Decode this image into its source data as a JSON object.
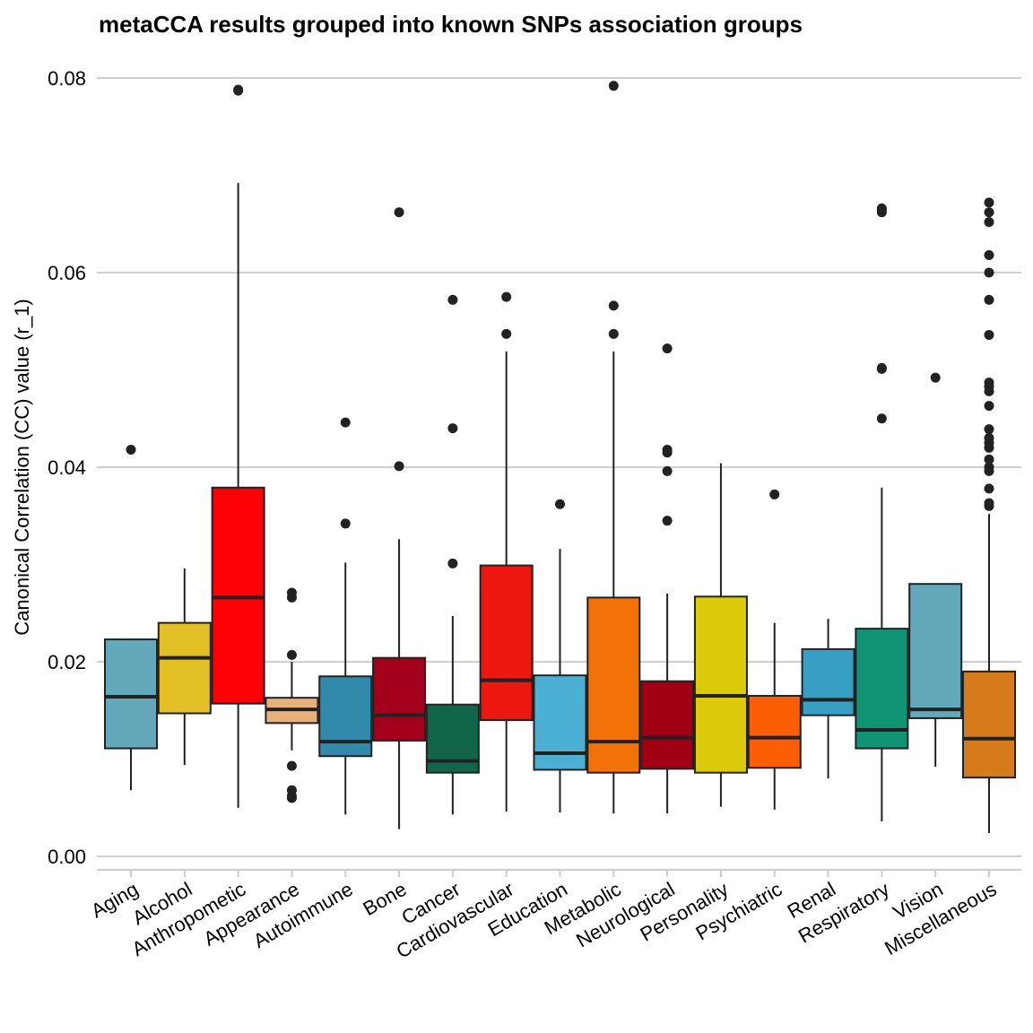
{
  "chart_data": {
    "type": "box",
    "title": "metaCCA results grouped into known SNPs association groups",
    "xlabel": "",
    "ylabel": "Canonical Correlation (CC) value (r_1)",
    "ylim": [
      0,
      0.08
    ],
    "yticks": [
      "0.00",
      "0.02",
      "0.04",
      "0.06",
      "0.08"
    ],
    "grid": "horizontal",
    "categories": [
      "Aging",
      "Alcohol",
      "Anthropometic",
      "Appearance",
      "Autoimmune",
      "Bone",
      "Cancer",
      "Cardiovascular",
      "Education",
      "Metabolic",
      "Neurological",
      "Personality",
      "Psychiatric",
      "Renal",
      "Respiratory",
      "Vision",
      "Miscellaneous"
    ],
    "boxes": [
      {
        "category": "Aging",
        "color": "#64a8bc",
        "whisker_low": 0.0068,
        "q1": 0.0111,
        "median": 0.0164,
        "q3": 0.0223,
        "whisker_high": 0.0223,
        "outliers": [
          0.0418
        ]
      },
      {
        "category": "Alcohol",
        "color": "#e3c025",
        "whisker_low": 0.0094,
        "q1": 0.0147,
        "median": 0.0204,
        "q3": 0.024,
        "whisker_high": 0.0296,
        "outliers": []
      },
      {
        "category": "Anthropometic",
        "color": "#fc0006",
        "whisker_low": 0.005,
        "q1": 0.0157,
        "median": 0.0266,
        "q3": 0.0379,
        "whisker_high": 0.0692,
        "outliers": [
          0.0787,
          0.0788
        ]
      },
      {
        "category": "Appearance",
        "color": "#e7b07c",
        "whisker_low": 0.0109,
        "q1": 0.0137,
        "median": 0.0151,
        "q3": 0.0163,
        "whisker_high": 0.02,
        "outliers": [
          0.0207,
          0.0266,
          0.0271,
          0.0093,
          0.0068,
          0.006,
          0.0062
        ]
      },
      {
        "category": "Autoimmune",
        "color": "#318aaa",
        "whisker_low": 0.0043,
        "q1": 0.0103,
        "median": 0.0118,
        "q3": 0.0185,
        "whisker_high": 0.0302,
        "outliers": [
          0.0342,
          0.0446
        ]
      },
      {
        "category": "Bone",
        "color": "#a3001b",
        "whisker_low": 0.0028,
        "q1": 0.0119,
        "median": 0.0145,
        "q3": 0.0204,
        "whisker_high": 0.0326,
        "outliers": [
          0.0401,
          0.0662
        ]
      },
      {
        "category": "Cancer",
        "color": "#10654a",
        "whisker_low": 0.0043,
        "q1": 0.0086,
        "median": 0.0098,
        "q3": 0.0156,
        "whisker_high": 0.0247,
        "outliers": [
          0.0301,
          0.044,
          0.0572
        ]
      },
      {
        "category": "Cardiovascular",
        "color": "#ec170f",
        "whisker_low": 0.0046,
        "q1": 0.014,
        "median": 0.0181,
        "q3": 0.0299,
        "whisker_high": 0.0519,
        "outliers": [
          0.0537,
          0.0575
        ]
      },
      {
        "category": "Education",
        "color": "#4cb0d4",
        "whisker_low": 0.0045,
        "q1": 0.0089,
        "median": 0.0106,
        "q3": 0.0186,
        "whisker_high": 0.0316,
        "outliers": [
          0.0362
        ]
      },
      {
        "category": "Metabolic",
        "color": "#f27208",
        "whisker_low": 0.0044,
        "q1": 0.0086,
        "median": 0.0118,
        "q3": 0.0266,
        "whisker_high": 0.0519,
        "outliers": [
          0.0537,
          0.0566,
          0.0792
        ]
      },
      {
        "category": "Neurological",
        "color": "#a10014",
        "whisker_low": 0.0044,
        "q1": 0.009,
        "median": 0.0122,
        "q3": 0.018,
        "whisker_high": 0.027,
        "outliers": [
          0.0345,
          0.0396,
          0.0415,
          0.0418,
          0.0522
        ]
      },
      {
        "category": "Personality",
        "color": "#dccb0b",
        "whisker_low": 0.0051,
        "q1": 0.0086,
        "median": 0.0165,
        "q3": 0.0267,
        "whisker_high": 0.0404,
        "outliers": []
      },
      {
        "category": "Psychiatric",
        "color": "#fc5e05",
        "whisker_low": 0.0048,
        "q1": 0.0091,
        "median": 0.0122,
        "q3": 0.0165,
        "whisker_high": 0.024,
        "outliers": [
          0.0372
        ]
      },
      {
        "category": "Renal",
        "color": "#379fc4",
        "whisker_low": 0.008,
        "q1": 0.0145,
        "median": 0.0161,
        "q3": 0.0213,
        "whisker_high": 0.0244,
        "outliers": []
      },
      {
        "category": "Respiratory",
        "color": "#119474",
        "whisker_low": 0.0036,
        "q1": 0.0111,
        "median": 0.013,
        "q3": 0.0234,
        "whisker_high": 0.0379,
        "outliers": [
          0.045,
          0.0501,
          0.0502,
          0.0662,
          0.0664,
          0.0666
        ]
      },
      {
        "category": "Vision",
        "color": "#64a8bc",
        "whisker_low": 0.0092,
        "q1": 0.0142,
        "median": 0.0151,
        "q3": 0.028,
        "whisker_high": 0.028,
        "outliers": [
          0.0492
        ]
      },
      {
        "category": "Miscellaneous",
        "color": "#d57b1c",
        "whisker_low": 0.0024,
        "q1": 0.0081,
        "median": 0.0121,
        "q3": 0.019,
        "whisker_high": 0.0352,
        "outliers": [
          0.036,
          0.0363,
          0.0378,
          0.0396,
          0.04,
          0.0408,
          0.042,
          0.0425,
          0.043,
          0.0439,
          0.0463,
          0.0478,
          0.0483,
          0.0487,
          0.0536,
          0.0572,
          0.06,
          0.0618,
          0.0652,
          0.0662,
          0.0672
        ]
      }
    ]
  }
}
